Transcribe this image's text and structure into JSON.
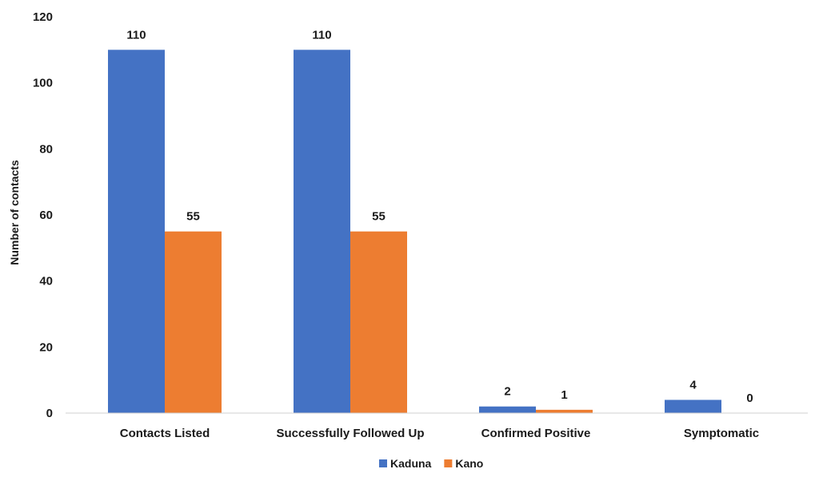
{
  "chart_data": {
    "type": "bar",
    "title": "",
    "xlabel": "",
    "ylabel": "Number of contacts",
    "ylim": [
      0,
      120
    ],
    "yticks": [
      0,
      20,
      40,
      60,
      80,
      100,
      120
    ],
    "categories": [
      "Contacts Listed",
      "Successfully Followed Up",
      "Confirmed Positive",
      "Symptomatic"
    ],
    "series": [
      {
        "name": "Kaduna",
        "color": "#4472C4",
        "values": [
          110,
          110,
          2,
          4
        ]
      },
      {
        "name": "Kano",
        "color": "#ED7D31",
        "values": [
          55,
          55,
          1,
          0
        ]
      }
    ],
    "grid": false,
    "legend": "bottom-center",
    "data_labels": true
  }
}
